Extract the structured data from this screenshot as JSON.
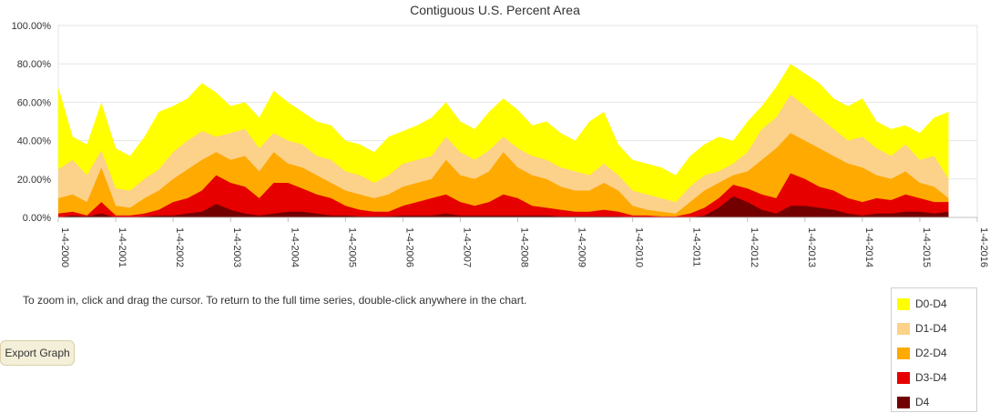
{
  "chart_data": {
    "type": "area",
    "title": "Contiguous U.S. Percent Area",
    "xlabel": "",
    "ylabel": "",
    "ylim": [
      0,
      100
    ],
    "y_ticks": [
      "0.00%",
      "20.00%",
      "40.00%",
      "60.00%",
      "80.00%",
      "100.00%"
    ],
    "x_ticks": [
      "1-4-2000",
      "1-4-2001",
      "1-4-2002",
      "1-4-2003",
      "1-4-2004",
      "1-4-2005",
      "1-4-2006",
      "1-4-2007",
      "1-4-2008",
      "1-4-2009",
      "1-4-2010",
      "1-4-2011",
      "1-4-2012",
      "1-4-2013",
      "1-4-2014",
      "1-4-2015",
      "1-4-2016"
    ],
    "xlim": [
      2000.0,
      2016.0
    ],
    "grid": true,
    "legend_position": "bottom-right",
    "x": [
      2000.0,
      2000.25,
      2000.5,
      2000.75,
      2001.0,
      2001.25,
      2001.5,
      2001.75,
      2002.0,
      2002.25,
      2002.5,
      2002.75,
      2003.0,
      2003.25,
      2003.5,
      2003.75,
      2004.0,
      2004.25,
      2004.5,
      2004.75,
      2005.0,
      2005.25,
      2005.5,
      2005.75,
      2006.0,
      2006.25,
      2006.5,
      2006.75,
      2007.0,
      2007.25,
      2007.5,
      2007.75,
      2008.0,
      2008.25,
      2008.5,
      2008.75,
      2009.0,
      2009.25,
      2009.5,
      2009.75,
      2010.0,
      2010.25,
      2010.5,
      2010.75,
      2011.0,
      2011.25,
      2011.5,
      2011.75,
      2012.0,
      2012.25,
      2012.5,
      2012.75,
      2013.0,
      2013.25,
      2013.5,
      2013.75,
      2014.0,
      2014.25,
      2014.5,
      2014.75,
      2015.0,
      2015.25,
      2015.5
    ],
    "series": [
      {
        "name": "D0-D4",
        "color": "#ffff00",
        "values": [
          68,
          42,
          38,
          60,
          36,
          32,
          42,
          55,
          58,
          62,
          70,
          65,
          58,
          60,
          52,
          66,
          60,
          55,
          50,
          48,
          40,
          38,
          34,
          42,
          45,
          48,
          52,
          60,
          50,
          46,
          55,
          62,
          56,
          48,
          50,
          44,
          40,
          50,
          55,
          38,
          30,
          28,
          26,
          22,
          32,
          38,
          42,
          40,
          50,
          58,
          68,
          80,
          75,
          70,
          62,
          58,
          62,
          50,
          46,
          48,
          44,
          52,
          55
        ]
      },
      {
        "name": "D1-D4",
        "color": "#fcd18a",
        "values": [
          25,
          30,
          22,
          35,
          15,
          14,
          20,
          25,
          34,
          40,
          45,
          42,
          44,
          46,
          36,
          44,
          40,
          38,
          32,
          30,
          24,
          22,
          18,
          22,
          28,
          30,
          32,
          42,
          34,
          30,
          35,
          42,
          36,
          32,
          30,
          26,
          24,
          22,
          28,
          22,
          14,
          12,
          10,
          8,
          16,
          22,
          24,
          28,
          34,
          46,
          52,
          64,
          58,
          52,
          46,
          40,
          42,
          36,
          32,
          38,
          30,
          32,
          20
        ]
      },
      {
        "name": "D2-D4",
        "color": "#ffaa00",
        "values": [
          10,
          12,
          8,
          26,
          6,
          5,
          10,
          14,
          20,
          25,
          30,
          34,
          30,
          32,
          24,
          34,
          28,
          26,
          22,
          18,
          14,
          12,
          10,
          12,
          16,
          18,
          20,
          30,
          22,
          20,
          24,
          34,
          26,
          22,
          20,
          16,
          14,
          14,
          18,
          14,
          6,
          4,
          3,
          2,
          8,
          14,
          18,
          22,
          24,
          30,
          36,
          44,
          40,
          36,
          32,
          28,
          26,
          22,
          20,
          24,
          18,
          16,
          10
        ]
      },
      {
        "name": "D3-D4",
        "color": "#e60000",
        "values": [
          2,
          3,
          1,
          8,
          1,
          1,
          2,
          4,
          8,
          10,
          14,
          22,
          18,
          16,
          10,
          18,
          18,
          15,
          12,
          10,
          6,
          4,
          3,
          3,
          6,
          8,
          10,
          12,
          8,
          6,
          8,
          12,
          10,
          6,
          5,
          4,
          3,
          3,
          4,
          3,
          1,
          1,
          0.5,
          0.5,
          2,
          5,
          10,
          17,
          15,
          12,
          10,
          23,
          20,
          16,
          14,
          10,
          8,
          10,
          9,
          12,
          10,
          8,
          8
        ]
      },
      {
        "name": "D4",
        "color": "#730000",
        "values": [
          0,
          1,
          0.5,
          2,
          0,
          0,
          0.5,
          1,
          1,
          2,
          3,
          7,
          4,
          2,
          1,
          2,
          3,
          3,
          2,
          1,
          1,
          0.5,
          0.5,
          0.5,
          1,
          1,
          1,
          2,
          1,
          1,
          1,
          1,
          1,
          1,
          1,
          0.5,
          0.5,
          0.5,
          0.5,
          0.5,
          0,
          0,
          0,
          0,
          0,
          1,
          5,
          11,
          8,
          4,
          2,
          6,
          6,
          5,
          4,
          2,
          1,
          2,
          2,
          3,
          3,
          2,
          3
        ]
      }
    ]
  },
  "note": "To zoom in, click and drag the cursor. To return to the full time series, double-click anywhere in the chart.",
  "export_label": "Export Graph",
  "legend": [
    {
      "label": "D0-D4",
      "color": "#ffff00"
    },
    {
      "label": "D1-D4",
      "color": "#fcd18a"
    },
    {
      "label": "D2-D4",
      "color": "#ffaa00"
    },
    {
      "label": "D3-D4",
      "color": "#e60000"
    },
    {
      "label": "D4",
      "color": "#730000"
    }
  ]
}
